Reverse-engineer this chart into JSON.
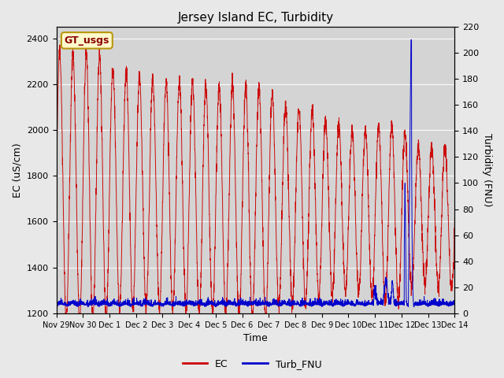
{
  "title": "Jersey Island EC, Turbidity",
  "xlabel": "Time",
  "ylabel_left": "EC (uS/cm)",
  "ylabel_right": "Turbidity (FNU)",
  "left_ylim": [
    1200,
    2450
  ],
  "right_ylim": [
    0,
    220
  ],
  "left_yticks": [
    1200,
    1400,
    1600,
    1800,
    2000,
    2200,
    2400
  ],
  "right_yticks": [
    0,
    20,
    40,
    60,
    80,
    100,
    120,
    140,
    160,
    180,
    200,
    220
  ],
  "bg_color": "#e8e8e8",
  "plot_bg_color": "#d4d4d4",
  "ec_color": "#cc0000",
  "turb_color": "#0000cc",
  "legend_label_ec": "EC",
  "legend_label_turb": "Turb_FNU",
  "annotation_text": "GT_usgs",
  "xtick_positions": [
    0,
    1,
    2,
    3,
    4,
    5,
    6,
    7,
    8,
    9,
    10,
    11,
    12,
    13,
    14,
    15
  ],
  "xtick_labels": [
    "Nov 29",
    "Nov 30",
    "Dec 1",
    "Dec 2",
    "Dec 3",
    "Dec 4",
    "Dec 5",
    "Dec 6",
    "Dec 7",
    "Dec 8",
    "Dec 9",
    "Dec 10",
    "Dec 11",
    "Dec 12",
    "Dec 13",
    "Dec 14"
  ]
}
